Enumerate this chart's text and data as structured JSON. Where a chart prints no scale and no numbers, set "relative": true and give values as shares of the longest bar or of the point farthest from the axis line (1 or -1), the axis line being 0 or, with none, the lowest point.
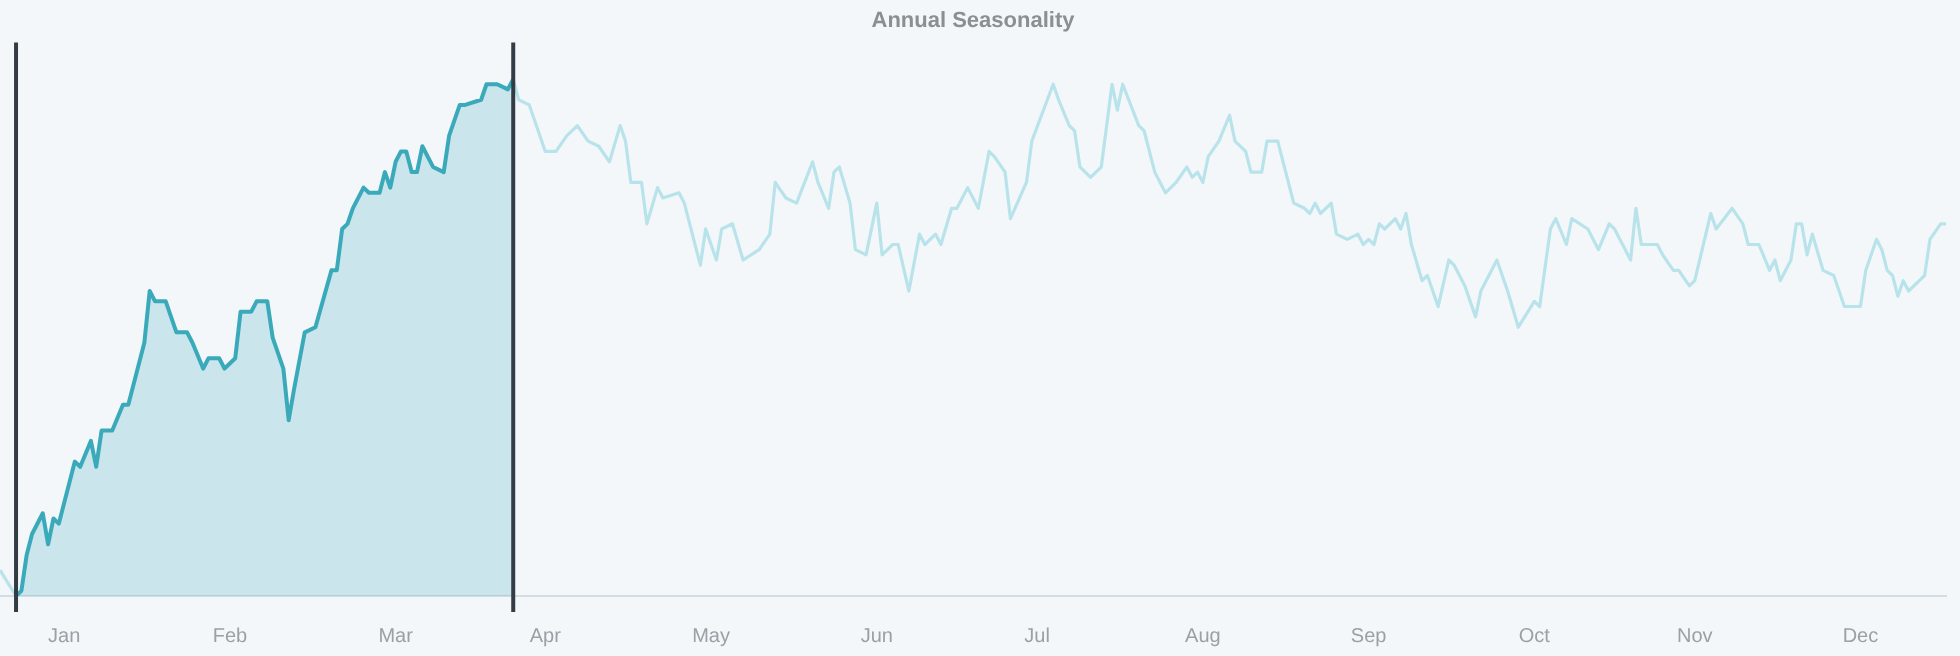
{
  "chart_data": {
    "type": "line",
    "title": "Annual Seasonality",
    "relative": true,
    "xlim": [
      "--01-01",
      "--12-31"
    ],
    "xticks": [
      {
        "value": "--01-13",
        "label": "Jan"
      },
      {
        "value": "--02-13",
        "label": "Feb"
      },
      {
        "value": "--03-16",
        "label": "Mar"
      },
      {
        "value": "--04-13",
        "label": "Apr"
      },
      {
        "value": "--05-14",
        "label": "May"
      },
      {
        "value": "--06-14",
        "label": "Jun"
      },
      {
        "value": "--07-14",
        "label": "Jul"
      },
      {
        "value": "--08-14",
        "label": "Aug"
      },
      {
        "value": "--09-14",
        "label": "Sep"
      },
      {
        "value": "--10-15",
        "label": "Oct"
      },
      {
        "value": "--11-14",
        "label": "Nov"
      },
      {
        "value": "--12-15",
        "label": "Dec"
      }
    ],
    "ref_lines": [
      {
        "axis": "x",
        "value": "--01-04",
        "color": "#333c45"
      },
      {
        "axis": "x",
        "value": "--04-07",
        "color": "#333c45"
      }
    ],
    "series": [
      {
        "color": "#b8e3ea",
        "x": [
          "--01-01",
          "--01-04",
          "--02-19",
          "--04-07",
          "--04-08",
          "--04-10",
          "--04-13",
          "--04-15",
          "--04-17",
          "--04-19",
          "--04-21",
          "--04-23",
          "--04-25",
          "--04-27",
          "--04-28",
          "--04-29",
          "--05-01",
          "--05-02",
          "--05-04",
          "--05-05",
          "--05-08",
          "--05-09",
          "--05-12",
          "--05-13",
          "--05-15",
          "--05-16",
          "--05-18",
          "--05-20",
          "--05-23",
          "--05-25",
          "--05-26",
          "--05-28",
          "--05-30",
          "--06-02",
          "--06-03",
          "--06-05",
          "--06-06",
          "--06-07",
          "--06-09",
          "--06-10",
          "--06-12",
          "--06-14",
          "--06-15",
          "--06-17",
          "--06-18",
          "--06-20",
          "--06-22",
          "--06-23",
          "--06-25",
          "--06-26",
          "--06-28",
          "--06-29",
          "--07-01",
          "--07-03",
          "--07-05",
          "--07-06",
          "--07-08",
          "--07-09",
          "--07-12",
          "--07-13",
          "--07-17",
          "--07-18",
          "--07-20",
          "--07-21",
          "--07-22",
          "--07-24",
          "--07-26",
          "--07-28",
          "--07-29",
          "--07-30",
          "--08-02",
          "--08-03",
          "--08-05",
          "--08-07",
          "--08-09",
          "--08-11",
          "--08-12",
          "--08-13",
          "--08-14",
          "--08-15",
          "--08-17",
          "--08-19",
          "--08-20",
          "--08-22",
          "--08-23",
          "--08-25",
          "--08-26",
          "--08-28",
          "--08-29",
          "--08-31",
          "--09-02",
          "--09-03",
          "--09-04",
          "--09-05",
          "--09-07",
          "--09-08",
          "--09-10",
          "--09-12",
          "--09-13",
          "--09-14",
          "--09-15",
          "--09-16",
          "--09-17",
          "--09-19",
          "--09-20",
          "--09-21",
          "--09-22",
          "--09-24",
          "--09-25",
          "--09-27",
          "--09-29",
          "--09-30",
          "--10-02",
          "--10-04",
          "--10-05",
          "--10-07",
          "--10-08",
          "--10-10",
          "--10-12",
          "--10-15",
          "--10-16",
          "--10-18",
          "--10-19",
          "--10-21",
          "--10-22",
          "--10-25",
          "--10-27",
          "--10-29",
          "--10-30",
          "--11-02",
          "--11-03",
          "--11-04",
          "--11-05",
          "--11-07",
          "--11-08",
          "--11-10",
          "--11-11",
          "--11-13",
          "--11-14",
          "--11-17",
          "--11-18",
          "--11-21",
          "--11-23",
          "--11-24",
          "--11-26",
          "--11-28",
          "--11-29",
          "--11-30",
          "--12-02",
          "--12-03",
          "--12-04",
          "--12-05",
          "--12-06",
          "--12-08",
          "--12-10",
          "--12-12",
          "--12-15",
          "--12-16",
          "--12-18",
          "--12-19",
          "--12-20",
          "--12-21",
          "--12-22",
          "--12-23",
          "--12-24",
          "--12-26",
          "--12-27",
          "--12-28",
          "--12-30",
          "--12-31"
        ],
        "values": [
          0.05,
          0.0,
          null,
          1.0,
          0.96,
          0.95,
          0.86,
          0.86,
          0.89,
          0.91,
          0.88,
          0.87,
          0.84,
          0.91,
          0.88,
          0.8,
          0.8,
          0.72,
          0.79,
          0.77,
          0.78,
          0.76,
          0.64,
          0.71,
          0.65,
          0.71,
          0.72,
          0.65,
          0.67,
          0.7,
          0.8,
          0.77,
          0.76,
          0.84,
          0.8,
          0.75,
          0.82,
          0.83,
          0.76,
          0.67,
          0.66,
          0.76,
          0.66,
          0.68,
          0.68,
          0.59,
          0.7,
          0.68,
          0.7,
          0.68,
          0.75,
          0.75,
          0.79,
          0.75,
          0.86,
          0.85,
          0.82,
          0.73,
          0.8,
          0.88,
          0.99,
          0.96,
          0.91,
          0.9,
          0.83,
          0.81,
          0.83,
          0.99,
          0.94,
          0.99,
          0.91,
          0.9,
          0.82,
          0.78,
          0.8,
          0.83,
          0.81,
          0.82,
          0.8,
          0.85,
          0.88,
          0.93,
          0.88,
          0.86,
          0.82,
          0.82,
          0.88,
          0.88,
          0.84,
          0.76,
          0.75,
          0.74,
          0.76,
          0.74,
          0.76,
          0.7,
          0.69,
          0.7,
          0.68,
          0.69,
          0.68,
          0.72,
          0.71,
          0.73,
          0.71,
          0.74,
          0.68,
          0.61,
          0.62,
          0.56,
          0.65,
          0.64,
          0.6,
          0.54,
          0.59,
          0.63,
          0.65,
          0.59,
          0.52,
          0.57,
          0.56,
          0.71,
          0.73,
          0.68,
          0.73,
          0.71,
          0.67,
          0.72,
          0.71,
          0.65,
          0.75,
          0.68,
          0.68,
          0.68,
          0.66,
          0.63,
          0.63,
          0.6,
          0.61,
          0.74,
          0.71,
          0.75,
          0.72,
          0.68,
          0.68,
          0.63,
          0.65,
          0.61,
          0.65,
          0.72,
          0.72,
          0.66,
          0.7,
          0.63,
          0.62,
          0.56,
          0.56,
          0.63,
          0.69,
          0.67,
          0.63,
          0.62,
          0.58,
          0.61,
          0.59,
          0.61,
          0.62,
          0.69,
          0.72,
          0.72
        ]
      },
      {
        "type": "area",
        "color": "#3aaabb",
        "x": [
          "--01-04",
          "--01-05",
          "--01-06",
          "--01-07",
          "--01-09",
          "--01-10",
          "--01-11",
          "--01-12",
          "--01-15",
          "--01-16",
          "--01-18",
          "--01-19",
          "--01-20",
          "--01-22",
          "--01-24",
          "--01-25",
          "--01-28",
          "--01-29",
          "--01-30",
          "--02-01",
          "--02-03",
          "--02-05",
          "--02-06",
          "--02-08",
          "--02-09",
          "--02-10",
          "--02-11",
          "--02-12",
          "--02-14",
          "--02-15",
          "--02-17",
          "--02-18",
          "--02-20",
          "--02-21",
          "--02-23",
          "--02-24",
          "--02-25",
          "--02-27",
          "--03-01",
          "--03-04",
          "--03-05",
          "--03-06",
          "--03-07",
          "--03-08",
          "--03-10",
          "--03-11",
          "--03-13",
          "--03-14",
          "--03-15",
          "--03-16",
          "--03-17",
          "--03-18",
          "--03-19",
          "--03-20",
          "--03-21",
          "--03-23",
          "--03-25",
          "--03-26",
          "--03-28",
          "--03-29",
          "--04-01",
          "--04-02",
          "--04-04",
          "--04-06",
          "--04-07"
        ],
        "values": [
          0.0,
          0.01,
          0.08,
          0.12,
          0.16,
          0.1,
          0.15,
          0.14,
          0.26,
          0.25,
          0.3,
          0.25,
          0.32,
          0.32,
          0.37,
          0.37,
          0.49,
          0.59,
          0.57,
          0.57,
          0.51,
          0.51,
          0.49,
          0.44,
          0.46,
          0.46,
          0.46,
          0.44,
          0.46,
          0.55,
          0.55,
          0.57,
          0.57,
          0.5,
          0.44,
          0.34,
          0.4,
          0.51,
          0.52,
          0.63,
          0.63,
          0.71,
          0.72,
          0.75,
          0.79,
          0.78,
          0.78,
          0.82,
          0.79,
          0.84,
          0.86,
          0.86,
          0.82,
          0.82,
          0.87,
          0.83,
          0.82,
          0.89,
          0.95,
          0.95,
          0.96,
          0.99,
          0.99,
          0.98,
          1.0
        ]
      }
    ]
  }
}
